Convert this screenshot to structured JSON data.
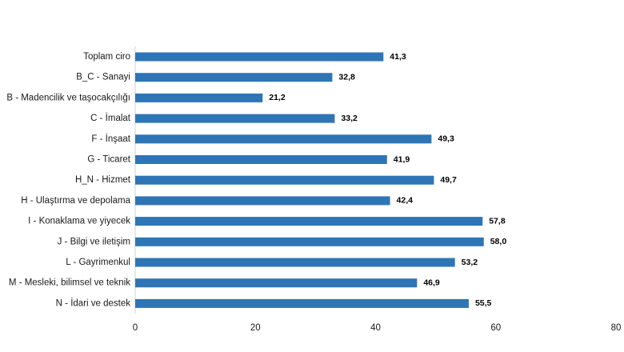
{
  "chart_data": {
    "type": "bar",
    "orientation": "horizontal",
    "categories": [
      "Toplam ciro",
      "B_C - Sanayi",
      "B - Madencilik ve taşocakçılığı",
      "C - İmalat",
      "F - İnşaat",
      "G - Ticaret",
      "H_N - Hizmet",
      "H - Ulaştırma ve depolama",
      "I - Konaklama ve yiyecek",
      "J - Bilgi ve iletişim",
      "L - Gayrimenkul",
      "M - Mesleki, bilimsel ve teknik",
      "N - İdari ve destek"
    ],
    "values": [
      41.3,
      32.8,
      21.2,
      33.2,
      49.3,
      41.9,
      49.7,
      42.4,
      57.8,
      58.0,
      53.2,
      46.9,
      55.5
    ],
    "value_labels": [
      "41,3",
      "32,8",
      "21,2",
      "33,2",
      "49,3",
      "41,9",
      "49,7",
      "42,4",
      "57,8",
      "58,0",
      "53,2",
      "46,9",
      "55,5"
    ],
    "xlim": [
      0,
      80
    ],
    "x_ticks": [
      "0",
      "20",
      "40",
      "60",
      "80"
    ],
    "title": "",
    "xlabel": "",
    "ylabel": "",
    "grid": false,
    "legend": "none",
    "bar_color": "#2e75b6"
  }
}
